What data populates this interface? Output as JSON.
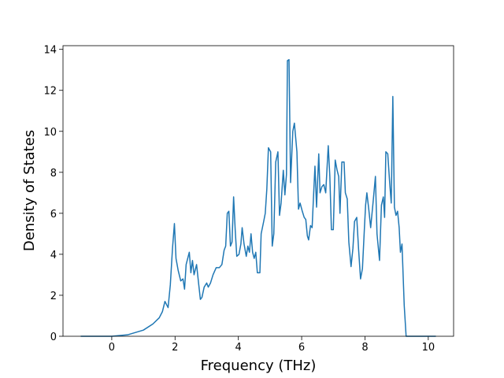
{
  "chart_data": {
    "type": "line",
    "xlabel": "Frequency (THz)",
    "ylabel": "Density of States",
    "color": "#1f77b4",
    "x": [
      -0.98,
      0,
      0.5,
      1.0,
      1.3,
      1.5,
      1.6,
      1.68,
      1.78,
      1.85,
      1.92,
      1.98,
      2.03,
      2.1,
      2.18,
      2.25,
      2.3,
      2.35,
      2.45,
      2.5,
      2.55,
      2.6,
      2.68,
      2.75,
      2.8,
      2.85,
      2.92,
      3.0,
      3.05,
      3.12,
      3.2,
      3.3,
      3.4,
      3.48,
      3.55,
      3.6,
      3.65,
      3.7,
      3.75,
      3.8,
      3.85,
      3.9,
      3.95,
      4.02,
      4.08,
      4.12,
      4.18,
      4.25,
      4.3,
      4.35,
      4.4,
      4.45,
      4.5,
      4.55,
      4.6,
      4.68,
      4.72,
      4.8,
      4.85,
      4.9,
      4.95,
      5.02,
      5.07,
      5.12,
      5.18,
      5.25,
      5.3,
      5.35,
      5.42,
      5.47,
      5.52,
      5.55,
      5.6,
      5.65,
      5.72,
      5.77,
      5.85,
      5.9,
      5.95,
      6.02,
      6.08,
      6.13,
      6.18,
      6.22,
      6.28,
      6.33,
      6.38,
      6.42,
      6.47,
      6.54,
      6.58,
      6.64,
      6.7,
      6.76,
      6.84,
      6.89,
      6.94,
      7.0,
      7.06,
      7.12,
      7.17,
      7.21,
      7.27,
      7.34,
      7.38,
      7.44,
      7.49,
      7.56,
      7.62,
      7.67,
      7.74,
      7.8,
      7.86,
      7.92,
      7.98,
      8.02,
      8.06,
      8.12,
      8.18,
      8.26,
      8.33,
      8.38,
      8.46,
      8.52,
      8.58,
      8.62,
      8.66,
      8.72,
      8.78,
      8.83,
      8.88,
      8.93,
      8.98,
      9.03,
      9.08,
      9.12,
      9.17,
      9.24,
      9.3,
      10.24
    ],
    "values": [
      0,
      0,
      0.07,
      0.3,
      0.6,
      0.9,
      1.2,
      1.7,
      1.4,
      2.5,
      4.3,
      5.5,
      3.8,
      3.2,
      2.7,
      2.8,
      2.3,
      3.5,
      4.1,
      3.1,
      3.7,
      3.0,
      3.5,
      2.5,
      1.8,
      1.9,
      2.4,
      2.6,
      2.4,
      2.6,
      3.0,
      3.35,
      3.35,
      3.5,
      4.2,
      4.4,
      6.0,
      6.1,
      4.4,
      4.6,
      6.8,
      5.2,
      3.9,
      4.0,
      4.5,
      5.3,
      4.5,
      3.9,
      4.4,
      4.1,
      5.0,
      4.1,
      3.8,
      4.1,
      3.1,
      3.1,
      5.0,
      5.6,
      6.0,
      7.2,
      9.2,
      9.0,
      4.4,
      5.0,
      8.5,
      9.0,
      5.9,
      6.5,
      8.1,
      6.9,
      7.9,
      13.45,
      13.5,
      7.5,
      10.0,
      10.4,
      9.0,
      6.2,
      6.5,
      6.1,
      5.8,
      5.7,
      4.9,
      4.7,
      5.4,
      5.3,
      7.0,
      8.3,
      6.3,
      8.9,
      7.0,
      7.3,
      7.4,
      7.0,
      9.3,
      7.8,
      5.2,
      5.2,
      8.6,
      8.1,
      7.8,
      6.0,
      8.5,
      8.5,
      7.0,
      6.7,
      4.6,
      3.4,
      4.3,
      5.6,
      5.8,
      4.2,
      2.8,
      3.3,
      5.2,
      6.4,
      7.0,
      6.2,
      5.3,
      6.6,
      7.8,
      5.0,
      3.7,
      6.4,
      6.8,
      5.8,
      9.0,
      8.9,
      7.5,
      6.5,
      11.7,
      6.3,
      5.9,
      6.1,
      5.3,
      4.1,
      4.5,
      1.5,
      0,
      0
    ],
    "xlim": [
      -1.54,
      10.8
    ],
    "ylim": [
      0,
      14.18
    ],
    "xticks": [
      0,
      2,
      4,
      6,
      8,
      10
    ],
    "yticks": [
      0,
      2,
      4,
      6,
      8,
      10,
      12,
      14
    ]
  }
}
